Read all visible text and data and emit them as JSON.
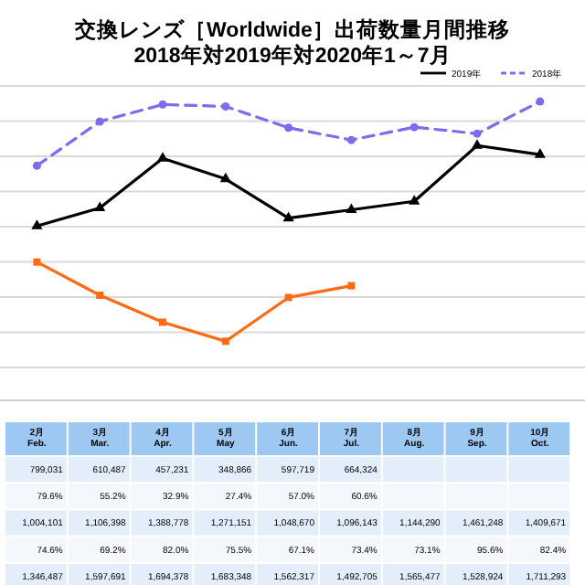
{
  "chart_data": {
    "type": "line",
    "title": "交換レンズ［Worldwide］出荷数量月間推移",
    "subtitle": "2018年対2019年対2020年1～7月",
    "categories": [
      "2月\nFeb.",
      "3月\nMar.",
      "4月\nApr.",
      "5月\nMay",
      "6月\nJun.",
      "7月\nJul.",
      "8月\nAug.",
      "9月\nSep.",
      "10月\nOct."
    ],
    "series": [
      {
        "color": "#ff6a13",
        "marker": "square",
        "line_style": "solid",
        "values": [
          799031,
          610487,
          457231,
          348866,
          597719,
          664324,
          null,
          null,
          null
        ],
        "value_labels": [
          "799,031",
          "610,487",
          "457,231",
          "348,866",
          "597,719",
          "664,324",
          null,
          null,
          null
        ]
      },
      {
        "type": "other",
        "values": [
          null,
          null,
          null,
          null,
          null,
          null,
          null,
          null,
          null
        ],
        "value_labels": [
          "79.6%",
          "55.2%",
          "32.9%",
          "27.4%",
          "57.0%",
          "60.6%",
          null,
          null,
          null
        ]
      },
      {
        "name": "2019年",
        "color": "#000000",
        "marker": "triangle",
        "line_style": "solid",
        "values": [
          1004101,
          1106398,
          1388778,
          1271151,
          1048670,
          1096143,
          1144290,
          1461248,
          1409671
        ],
        "value_labels": [
          "1,004,101",
          "1,106,398",
          "1,388,778",
          "1,271,151",
          "1,048,670",
          "1,096,143",
          "1,144,290",
          "1,461,248",
          "1,409,671"
        ]
      },
      {
        "type": "other",
        "values": [
          null,
          null,
          null,
          null,
          null,
          null,
          null,
          null,
          null
        ],
        "value_labels": [
          "74.6%",
          "69.2%",
          "82.0%",
          "75.5%",
          "67.1%",
          "73.4%",
          "73.1%",
          "95.6%",
          "82.4%"
        ]
      },
      {
        "name": "2018年",
        "color": "#7b6cf0",
        "marker": "circle",
        "line_style": "dashed",
        "values": [
          1346487,
          1597691,
          1694378,
          1683348,
          1562317,
          1492705,
          1565477,
          1528924,
          1711293
        ],
        "value_labels": [
          "1,346,487",
          "1,597,691",
          "1,694,378",
          "1,683,348",
          "1,562,317",
          "1,492,705",
          "1,565,477",
          "1,528,924",
          "1,711,293"
        ]
      }
    ],
    "ylim": [
      200000,
      1800000
    ],
    "yticks": [
      {
        "value": 200000,
        "label": null
      },
      {
        "value": 400000,
        "label": null
      },
      {
        "value": 600000,
        "label": null
      },
      {
        "value": 800000,
        "label": null
      },
      {
        "value": 1000000,
        "label": null
      },
      {
        "value": 1200000,
        "label": null
      },
      {
        "value": 1400000,
        "label": null
      },
      {
        "value": 1600000,
        "label": null
      },
      {
        "value": 1800000,
        "label": null
      }
    ],
    "grid": "y",
    "legend": "top right",
    "tick_labels": "x"
  }
}
